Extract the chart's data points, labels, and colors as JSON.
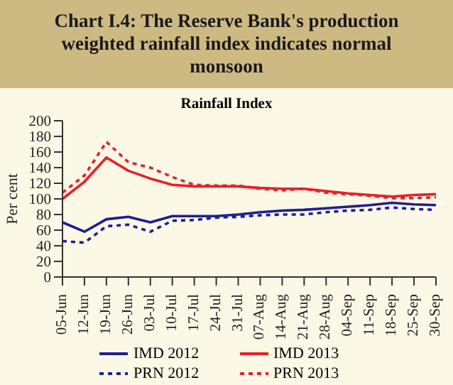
{
  "chart_data": {
    "type": "line",
    "title": "Chart I.4: The Reserve Bank's production weighted rainfall index indicates normal monsoon",
    "subtitle": "Rainfall Index",
    "ylabel": "Per cent",
    "categories": [
      "05-Jun",
      "12-Jun",
      "19-Jun",
      "26-Jun",
      "03-Jul",
      "10-Jul",
      "17-Jul",
      "24-Jul",
      "31-Jul",
      "07-Aug",
      "14-Aug",
      "21-Aug",
      "28-Aug",
      "04-Sep",
      "11-Sep",
      "18-Sep",
      "25-Sep",
      "30-Sep"
    ],
    "series": [
      {
        "name": "IMD 2012",
        "color": "#1f1f8f",
        "line_style": "solid",
        "values": [
          70,
          58,
          74,
          77,
          70,
          78,
          78,
          78,
          80,
          83,
          85,
          86,
          88,
          90,
          92,
          95,
          93,
          92
        ]
      },
      {
        "name": "IMD 2013",
        "color": "#e8202a",
        "line_style": "solid",
        "values": [
          100,
          122,
          153,
          136,
          126,
          118,
          116,
          116,
          116,
          114,
          113,
          113,
          110,
          107,
          105,
          103,
          105,
          106
        ]
      },
      {
        "name": "PRN 2012",
        "color": "#1f1f8f",
        "line_style": "dotted",
        "values": [
          46,
          44,
          65,
          67,
          58,
          72,
          73,
          76,
          77,
          79,
          80,
          80,
          83,
          85,
          86,
          89,
          87,
          86
        ]
      },
      {
        "name": "PRN 2013",
        "color": "#e8202a",
        "line_style": "dotted",
        "values": [
          108,
          130,
          173,
          147,
          140,
          128,
          118,
          117,
          117,
          113,
          111,
          113,
          108,
          106,
          104,
          101,
          101,
          102
        ]
      }
    ],
    "ylim": [
      0,
      200
    ],
    "yticks": [
      0,
      20,
      40,
      60,
      80,
      100,
      120,
      140,
      160,
      180,
      200
    ],
    "legend": "bottom",
    "marker": "none"
  }
}
